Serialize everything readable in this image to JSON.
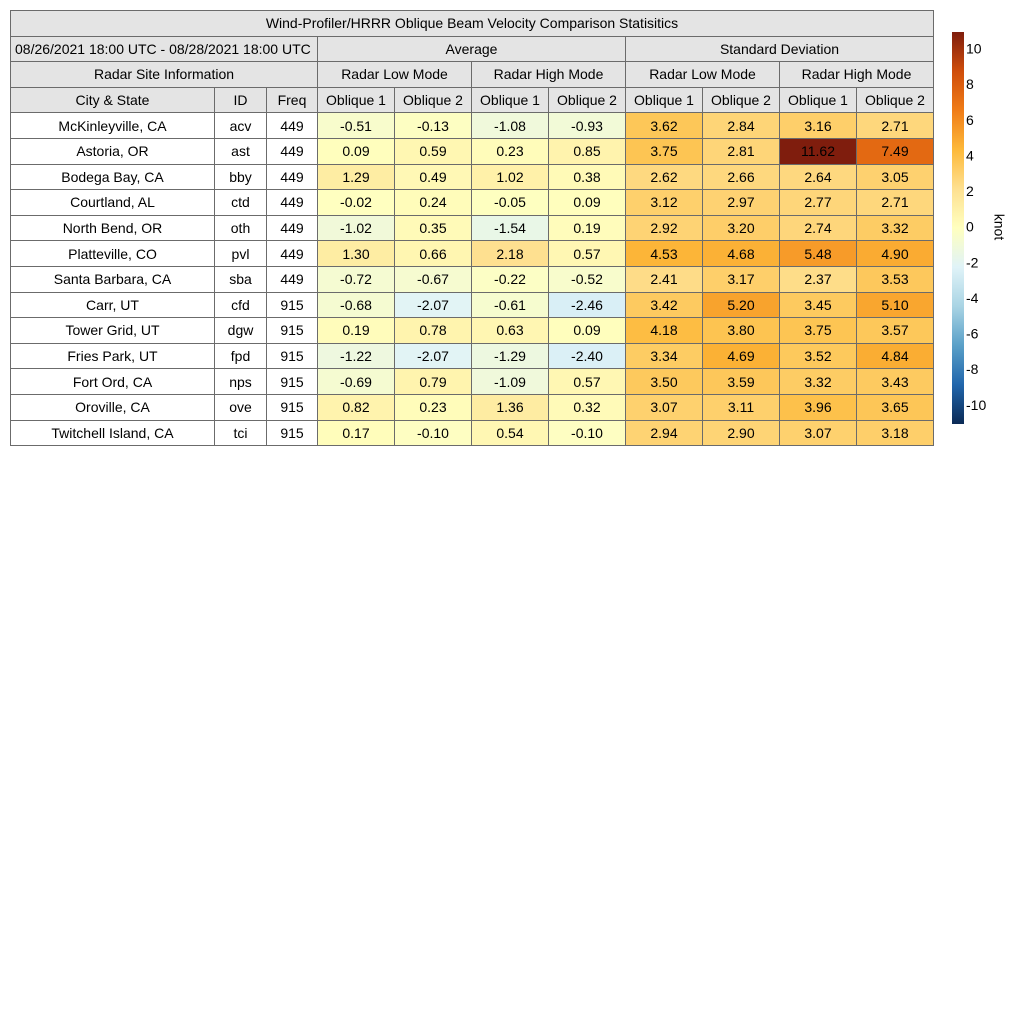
{
  "title": "Wind-Profiler/HRRR Oblique Beam Velocity Comparison Statisitics",
  "date_range": "08/26/2021 18:00 UTC - 08/28/2021 18:00 UTC",
  "headers": {
    "average": "Average",
    "std_dev": "Standard Deviation",
    "site_info": "Radar Site Information",
    "low_mode": "Radar Low Mode",
    "high_mode": "Radar High Mode",
    "city_state": "City & State",
    "id": "ID",
    "freq": "Freq",
    "oblique1": "Oblique 1",
    "oblique2": "Oblique 2"
  },
  "colorbar": {
    "label": "knot",
    "min": -11,
    "max": 11,
    "ticks": [
      10,
      8,
      6,
      4,
      2,
      0,
      -2,
      -4,
      -6,
      -8,
      -10
    ],
    "stops": [
      "#0b2a55",
      "#2166ac",
      "#5aa0c8",
      "#a9d4e4",
      "#e0f3f8",
      "#ffffbf",
      "#fee090",
      "#fdb93a",
      "#f07c17",
      "#cf4d0b",
      "#7f1d0d"
    ]
  },
  "chart_data": {
    "type": "table",
    "columns": [
      "City & State",
      "ID",
      "Freq",
      "Avg Low Oblique 1",
      "Avg Low Oblique 2",
      "Avg High Oblique 1",
      "Avg High Oblique 2",
      "SD Low Oblique 1",
      "SD Low Oblique 2",
      "SD High Oblique 1",
      "SD High Oblique 2"
    ],
    "rows": [
      {
        "city": "McKinleyville, CA",
        "id": "acv",
        "freq": "449",
        "values": [
          "-0.51",
          "-0.13",
          "-1.08",
          "-0.93",
          "3.62",
          "2.84",
          "3.16",
          "2.71"
        ]
      },
      {
        "city": "Astoria, OR",
        "id": "ast",
        "freq": "449",
        "values": [
          "0.09",
          "0.59",
          "0.23",
          "0.85",
          "3.75",
          "2.81",
          "11.62",
          "7.49"
        ]
      },
      {
        "city": "Bodega Bay, CA",
        "id": "bby",
        "freq": "449",
        "values": [
          "1.29",
          "0.49",
          "1.02",
          "0.38",
          "2.62",
          "2.66",
          "2.64",
          "3.05"
        ]
      },
      {
        "city": "Courtland, AL",
        "id": "ctd",
        "freq": "449",
        "values": [
          "-0.02",
          "0.24",
          "-0.05",
          "0.09",
          "3.12",
          "2.97",
          "2.77",
          "2.71"
        ]
      },
      {
        "city": "North Bend, OR",
        "id": "oth",
        "freq": "449",
        "values": [
          "-1.02",
          "0.35",
          "-1.54",
          "0.19",
          "2.92",
          "3.20",
          "2.74",
          "3.32"
        ]
      },
      {
        "city": "Platteville, CO",
        "id": "pvl",
        "freq": "449",
        "values": [
          "1.30",
          "0.66",
          "2.18",
          "0.57",
          "4.53",
          "4.68",
          "5.48",
          "4.90"
        ]
      },
      {
        "city": "Santa Barbara, CA",
        "id": "sba",
        "freq": "449",
        "values": [
          "-0.72",
          "-0.67",
          "-0.22",
          "-0.52",
          "2.41",
          "3.17",
          "2.37",
          "3.53"
        ]
      },
      {
        "city": "Carr, UT",
        "id": "cfd",
        "freq": "915",
        "values": [
          "-0.68",
          "-2.07",
          "-0.61",
          "-2.46",
          "3.42",
          "5.20",
          "3.45",
          "5.10"
        ]
      },
      {
        "city": "Tower Grid, UT",
        "id": "dgw",
        "freq": "915",
        "values": [
          "0.19",
          "0.78",
          "0.63",
          "0.09",
          "4.18",
          "3.80",
          "3.75",
          "3.57"
        ]
      },
      {
        "city": "Fries Park, UT",
        "id": "fpd",
        "freq": "915",
        "values": [
          "-1.22",
          "-2.07",
          "-1.29",
          "-2.40",
          "3.34",
          "4.69",
          "3.52",
          "4.84"
        ]
      },
      {
        "city": "Fort Ord, CA",
        "id": "nps",
        "freq": "915",
        "values": [
          "-0.69",
          "0.79",
          "-1.09",
          "0.57",
          "3.50",
          "3.59",
          "3.32",
          "3.43"
        ]
      },
      {
        "city": "Oroville, CA",
        "id": "ove",
        "freq": "915",
        "values": [
          "0.82",
          "0.23",
          "1.36",
          "0.32",
          "3.07",
          "3.11",
          "3.96",
          "3.65"
        ]
      },
      {
        "city": "Twitchell Island, CA",
        "id": "tci",
        "freq": "915",
        "values": [
          "0.17",
          "-0.10",
          "0.54",
          "-0.10",
          "2.94",
          "2.90",
          "3.07",
          "3.18"
        ]
      }
    ]
  }
}
